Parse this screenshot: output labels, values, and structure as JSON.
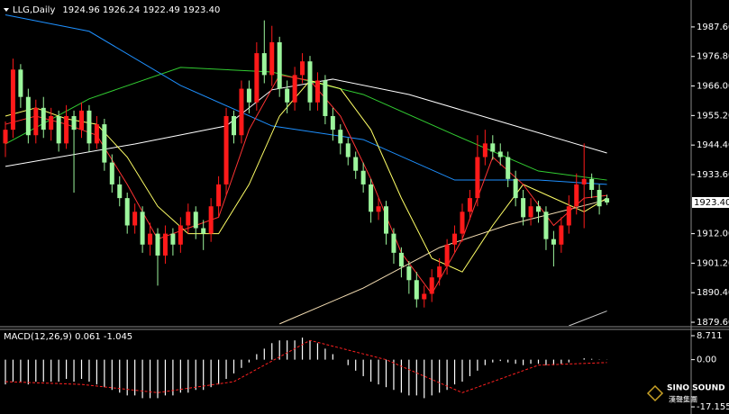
{
  "chart_data": [
    {
      "type": "candlestick",
      "title": "LLG,Daily",
      "subtitle": "1924.96 1926.24 1922.49 1923.40",
      "up_color": "#ff1a1a",
      "down_color": "#9cf59c",
      "wick_color": "#ffffff",
      "open": [
        1945,
        1950,
        1972,
        1962,
        1948,
        1958,
        1950,
        1955,
        1945,
        1955,
        1950,
        1957,
        1945,
        1952,
        1938,
        1930,
        1925,
        1915,
        1920,
        1908,
        1912,
        1904,
        1912,
        1908,
        1915,
        1920,
        1914,
        1912,
        1922,
        1930,
        1955,
        1948,
        1965,
        1960,
        1978,
        1970,
        1982,
        1965,
        1960,
        1970,
        1975,
        1960,
        1968,
        1955,
        1950,
        1945,
        1940,
        1935,
        1930,
        1920,
        1922,
        1912,
        1905,
        1900,
        1895,
        1888,
        1890,
        1896,
        1900,
        1908,
        1912,
        1920,
        1925,
        1940,
        1945,
        1942,
        1940,
        1932,
        1925,
        1918,
        1922,
        1920,
        1910,
        1908,
        1915,
        1922,
        1930,
        1932,
        1928,
        1924.96
      ],
      "high": [
        1953,
        1976,
        1974,
        1965,
        1961,
        1962,
        1958,
        1957,
        1959,
        1957,
        1960,
        1959,
        1955,
        1954,
        1941,
        1933,
        1927,
        1923,
        1922,
        1916,
        1914,
        1915,
        1914,
        1918,
        1923,
        1922,
        1917,
        1925,
        1933,
        1958,
        1957,
        1968,
        1968,
        1982,
        1990,
        1988,
        1984,
        1968,
        1973,
        1978,
        1977,
        1971,
        1970,
        1958,
        1952,
        1947,
        1942,
        1938,
        1932,
        1925,
        1924,
        1914,
        1907,
        1902,
        1898,
        1893,
        1899,
        1903,
        1910,
        1915,
        1923,
        1928,
        1948,
        1950,
        1948,
        1945,
        1942,
        1935,
        1928,
        1925,
        1924,
        1922,
        1913,
        1918,
        1926,
        1934,
        1945,
        1934,
        1930,
        1926.24
      ],
      "low": [
        1940,
        1947,
        1958,
        1945,
        1945,
        1947,
        1946,
        1942,
        1943,
        1927,
        1947,
        1942,
        1943,
        1935,
        1927,
        1922,
        1912,
        1912,
        1905,
        1904,
        1893,
        1901,
        1904,
        1905,
        1912,
        1910,
        1906,
        1909,
        1918,
        1926,
        1945,
        1945,
        1956,
        1957,
        1967,
        1966,
        1962,
        1956,
        1957,
        1967,
        1957,
        1957,
        1952,
        1946,
        1941,
        1937,
        1932,
        1927,
        1916,
        1917,
        1908,
        1901,
        1896,
        1890,
        1885,
        1885,
        1887,
        1893,
        1897,
        1905,
        1909,
        1917,
        1922,
        1937,
        1939,
        1937,
        1929,
        1922,
        1915,
        1915,
        1916,
        1906,
        1900,
        1905,
        1912,
        1919,
        1914,
        1925,
        1919,
        1922.49
      ],
      "close": [
        1950,
        1972,
        1962,
        1948,
        1958,
        1950,
        1955,
        1945,
        1955,
        1950,
        1957,
        1945,
        1952,
        1938,
        1930,
        1925,
        1915,
        1920,
        1908,
        1912,
        1904,
        1912,
        1908,
        1915,
        1920,
        1914,
        1912,
        1922,
        1930,
        1955,
        1948,
        1965,
        1960,
        1978,
        1970,
        1982,
        1965,
        1960,
        1970,
        1975,
        1960,
        1968,
        1955,
        1950,
        1945,
        1940,
        1935,
        1930,
        1920,
        1922,
        1912,
        1905,
        1900,
        1895,
        1888,
        1890,
        1896,
        1900,
        1908,
        1912,
        1920,
        1925,
        1940,
        1945,
        1942,
        1940,
        1932,
        1925,
        1918,
        1922,
        1920,
        1910,
        1908,
        1915,
        1922,
        1930,
        1932,
        1928,
        1922,
        1923.4
      ],
      "series": [
        {
          "color": "#ffffff",
          "x": [
            0,
            17,
            29,
            35,
            43,
            53,
            65,
            79
          ],
          "values": [
            1936.6,
            1944.8,
            1951.4,
            1964.6,
            1968.5,
            1962.9,
            1953.0,
            1941.5
          ]
        },
        {
          "color": "#32cd32",
          "x": [
            0,
            11,
            23,
            35,
            47,
            59,
            70,
            79
          ],
          "values": [
            1944.8,
            1961.3,
            1972.8,
            1971.1,
            1962.9,
            1948.1,
            1934.9,
            1931.6
          ]
        },
        {
          "color": "#1e90ff",
          "x": [
            0,
            11,
            23,
            35,
            47,
            59,
            70,
            79
          ],
          "values": [
            1992,
            1986.0,
            1966.2,
            1951.4,
            1946.4,
            1931.6,
            1931.6,
            1930.0
          ]
        },
        {
          "color": "#f5deb3",
          "x": [
            36,
            47,
            57,
            66,
            79
          ],
          "values": [
            1879.0,
            1892.1,
            1906.9,
            1915.2,
            1924.4
          ]
        },
        {
          "color": "#cccccc",
          "x": [
            74,
            79
          ],
          "values": [
            1878.3,
            1883.7
          ]
        },
        {
          "color": "#ffff66",
          "x": [
            0,
            4,
            8,
            12,
            16,
            20,
            24,
            28,
            32,
            36,
            40,
            44,
            48,
            52,
            56,
            60,
            64,
            68,
            72,
            76,
            79
          ],
          "values": [
            1955,
            1958,
            1954,
            1952,
            1940,
            1922,
            1912,
            1912,
            1930,
            1955,
            1968,
            1965,
            1950,
            1925,
            1903,
            1898,
            1915,
            1930,
            1925,
            1920,
            1925
          ]
        },
        {
          "color": "#ff3333",
          "x": [
            0,
            4,
            8,
            12,
            16,
            20,
            24,
            28,
            32,
            36,
            40,
            44,
            48,
            52,
            56,
            60,
            64,
            68,
            72,
            76,
            79
          ],
          "values": [
            1952,
            1955,
            1952,
            1948,
            1930,
            1910,
            1914,
            1918,
            1950,
            1970,
            1968,
            1955,
            1932,
            1905,
            1890,
            1910,
            1940,
            1930,
            1915,
            1925,
            1926
          ]
        }
      ],
      "ylim": [
        1878.3,
        1995.8
      ],
      "yticks": [
        {
          "value": 1987.6,
          "label": "1987.60"
        },
        {
          "value": 1976.8,
          "label": "1976.80"
        },
        {
          "value": 1966,
          "label": "1966.00"
        },
        {
          "value": 1955.2,
          "label": "1955.20"
        },
        {
          "value": 1944.4,
          "label": "1944.40"
        },
        {
          "value": 1933.6,
          "label": "1933.60"
        },
        {
          "value": 1912,
          "label": "1912.00"
        },
        {
          "value": 1901.2,
          "label": "1901.20"
        },
        {
          "value": 1890.4,
          "label": "1890.40"
        },
        {
          "value": 1879.6,
          "label": "1879.60"
        }
      ],
      "price_label": {
        "value": 1923.4,
        "label": "1923.40"
      }
    },
    {
      "type": "macd",
      "title": "MACD(12,26,9) 0.061 -1.045",
      "histogram_color": "#ffffff",
      "signal_color": "#ff2020",
      "values": [
        -9,
        -8,
        -8,
        -9,
        -8,
        -8,
        -8,
        -8,
        -7,
        -8,
        -7,
        -8,
        -9,
        -10,
        -11,
        -12,
        -13,
        -13,
        -14,
        -14,
        -14,
        -13,
        -13,
        -12,
        -12,
        -11,
        -11,
        -10,
        -9,
        -7,
        -5,
        -3,
        -1,
        2,
        4,
        6,
        7,
        7,
        7,
        8,
        7,
        6,
        4,
        2,
        0,
        -2,
        -4,
        -6,
        -8,
        -9,
        -10,
        -11,
        -12,
        -13,
        -13,
        -14,
        -13,
        -12,
        -11,
        -9,
        -8,
        -6,
        -4,
        -2,
        -1,
        -0.5,
        -1,
        -1.5,
        -2,
        -1.5,
        -1.5,
        -2,
        -2,
        -1.5,
        -1,
        0,
        0.5,
        0.3,
        0.1,
        0.061
      ],
      "signal": {
        "x": [
          0,
          10,
          20,
          30,
          40,
          50,
          60,
          70,
          79
        ],
        "values": [
          -8,
          -9,
          -12,
          -8,
          7,
          0,
          -12,
          -2,
          -1.045
        ]
      },
      "ylim": [
        -19.1,
        11.0
      ],
      "yticks": [
        8.711,
        {
          "value": 0,
          "label": "0.00"
        },
        -17.155
      ]
    }
  ],
  "watermark": {
    "brand": "SINO SOUND",
    "chinese": "漢聲集團"
  }
}
